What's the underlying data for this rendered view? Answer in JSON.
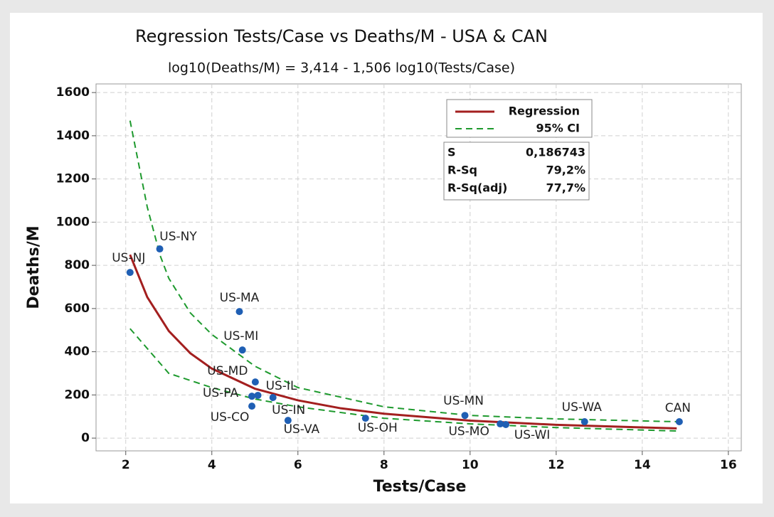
{
  "chart_data": {
    "type": "scatter",
    "title": "Regression Tests/Case vs Deaths/M - USA & CAN",
    "subtitle": "log10(Deaths/M) = 3,414 - 1,506 log10(Tests/Case)",
    "x_label": "Tests/Case",
    "y_label": "Deaths/M",
    "xlim": [
      1.31,
      16.3
    ],
    "ylim": [
      -59,
      1640
    ],
    "xticks": [
      2,
      4,
      6,
      8,
      10,
      12,
      14,
      16
    ],
    "yticks": [
      0,
      200,
      400,
      600,
      800,
      1000,
      1200,
      1400,
      1600
    ],
    "grid": true,
    "points": {
      "color": "#1f5fb4",
      "labels": [
        "US-NJ",
        "US-NY",
        "US-MA",
        "US-MI",
        "US-MD",
        "US-IL",
        "US-PA",
        "US-CO",
        "US-IN",
        "US-VA",
        "US-OH",
        "US-MN",
        "US-MO",
        "US-WI",
        "US-WA",
        "CAN"
      ],
      "x": [
        2.1,
        2.79,
        4.64,
        4.71,
        5.01,
        5.07,
        4.93,
        4.93,
        5.42,
        5.77,
        7.57,
        9.88,
        10.7,
        10.83,
        12.66,
        14.86
      ],
      "values": [
        767,
        876,
        586,
        408,
        260,
        198,
        194,
        148,
        188,
        82,
        92,
        105,
        66,
        63,
        76,
        76
      ]
    },
    "series": [
      {
        "name": "Regression",
        "color": "#a31f1f",
        "dash": false,
        "x": [
          2.1,
          2.5,
          3,
          3.5,
          4,
          5,
          6,
          7,
          8,
          10,
          12,
          14.8
        ],
        "values": [
          849,
          653,
          496,
          393,
          322,
          229,
          175,
          138,
          113,
          81,
          61.5,
          45
        ]
      },
      {
        "name": "95% CI",
        "color": "#1e9a2e",
        "dash": true,
        "x": [
          2.1,
          2.5,
          2.8,
          3,
          3.5,
          4,
          5,
          6,
          8,
          10,
          12,
          14.8
        ],
        "values": [
          1470,
          1070,
          845,
          740,
          580,
          480,
          333,
          234,
          145,
          105,
          89,
          76
        ]
      },
      {
        "color": "#1e9a2e",
        "dash": true,
        "x": [
          2.1,
          3,
          4,
          5,
          6,
          8,
          10,
          12,
          14.8
        ],
        "values": [
          507,
          300,
          234,
          181,
          145,
          92,
          66,
          49,
          33
        ]
      }
    ],
    "stats": [
      [
        "S",
        "0,186743"
      ],
      [
        "R-Sq",
        "79,2%"
      ],
      [
        "R-Sq(adj)",
        "77,7%"
      ]
    ]
  }
}
